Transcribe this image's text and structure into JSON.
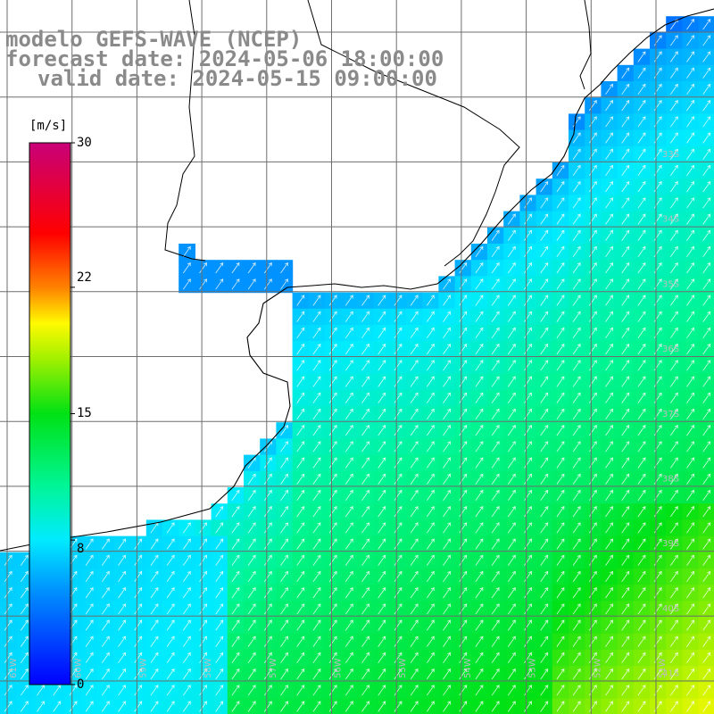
{
  "title_lines": [
    "modelo GEFS-WAVE (NCEP)",
    "forecast date: 2024-05-06 18:00:00",
    "valid date: 2024-05-15 09:00:00"
  ],
  "colorbar": {
    "unit": "[m/s]",
    "ticks": [
      "30",
      "22",
      "15",
      "8",
      "0"
    ],
    "tick_values": [
      30,
      22,
      15,
      8,
      0
    ],
    "range": [
      0,
      30
    ]
  },
  "lat_labels": [
    "33S",
    "34S",
    "35S",
    "36S",
    "37S",
    "38S",
    "39S",
    "40S",
    "41S"
  ],
  "lon_labels": [
    "61W",
    "60W",
    "59W",
    "58W",
    "57W",
    "56W",
    "55W",
    "54W",
    "53W",
    "52W",
    "51W"
  ],
  "map_data": {
    "type": "wind-field",
    "variable": "wind speed",
    "lon_range": [
      -61.5,
      -50.5
    ],
    "lat_range": [
      -41.5,
      -30.5
    ],
    "mean_direction": "from southwest",
    "colors": {
      "land": "#ffffff",
      "coast": "#000000",
      "grid": "#6e6e6e",
      "arrow": "#ffffff"
    }
  }
}
